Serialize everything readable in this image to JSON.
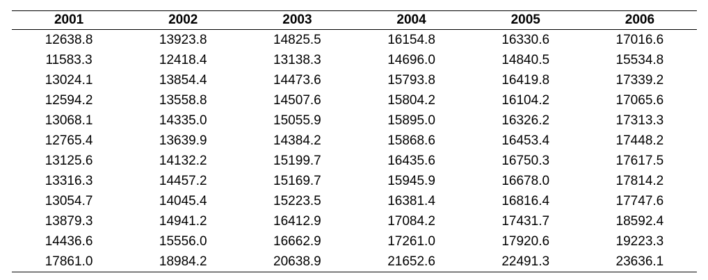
{
  "table": {
    "headers": [
      "2001",
      "2002",
      "2003",
      "2004",
      "2005",
      "2006"
    ],
    "rows": [
      [
        "12638.8",
        "13923.8",
        "14825.5",
        "16154.8",
        "16330.6",
        "17016.6"
      ],
      [
        "11583.3",
        "12418.4",
        "13138.3",
        "14696.0",
        "14840.5",
        "15534.8"
      ],
      [
        "13024.1",
        "13854.4",
        "14473.6",
        "15793.8",
        "16419.8",
        "17339.2"
      ],
      [
        "12594.2",
        "13558.8",
        "14507.6",
        "15804.2",
        "16104.2",
        "17065.6"
      ],
      [
        "13068.1",
        "14335.0",
        "15055.9",
        "15895.0",
        "16326.2",
        "17313.3"
      ],
      [
        "12765.4",
        "13639.9",
        "14384.2",
        "15868.6",
        "16453.4",
        "17448.2"
      ],
      [
        "13125.6",
        "14132.2",
        "15199.7",
        "16435.6",
        "16750.3",
        "17617.5"
      ],
      [
        "13316.3",
        "14457.2",
        "15169.7",
        "15945.9",
        "16678.0",
        "17814.2"
      ],
      [
        "13054.7",
        "14045.4",
        "15223.5",
        "16381.4",
        "16816.4",
        "17747.6"
      ],
      [
        "13879.3",
        "14941.2",
        "16412.9",
        "17084.2",
        "17431.7",
        "18592.4"
      ],
      [
        "14436.6",
        "15556.0",
        "16662.9",
        "17261.0",
        "17920.6",
        "19223.3"
      ],
      [
        "17861.0",
        "18984.2",
        "20638.9",
        "21652.6",
        "22491.3",
        "23636.1"
      ]
    ]
  }
}
